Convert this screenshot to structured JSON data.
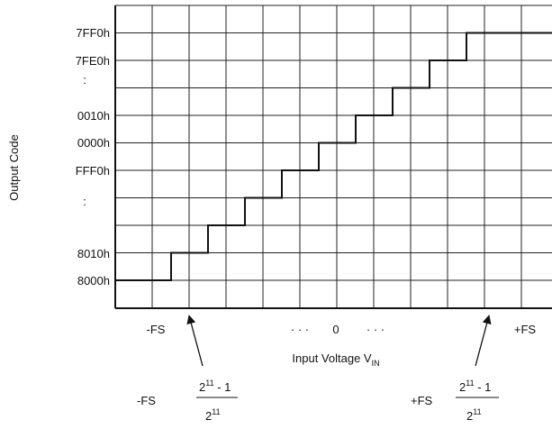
{
  "diagram": {
    "y_axis_label": "Output Code",
    "y_ticks": [
      "7FF0h",
      "7FE0h",
      ":",
      "0010h",
      "0000h",
      "FFF0h",
      ":",
      "8010h",
      "8000h"
    ],
    "x_labels": {
      "left": "-FS",
      "center_dots_left": "· · ·",
      "center": "0",
      "center_dots_right": "· · ·",
      "right": "+FS"
    },
    "x_axis_label_main": "Input Voltage V",
    "x_axis_label_sub": "IN",
    "annotation_left": {
      "prefix": "-FS",
      "numerator_base": "2",
      "numerator_exp": "11",
      "numerator_tail": " - 1",
      "denominator_base": "2",
      "denominator_exp": "11"
    },
    "annotation_right": {
      "prefix": "+FS",
      "numerator_base": "2",
      "numerator_exp": "11",
      "numerator_tail": " - 1",
      "denominator_base": "2",
      "denominator_exp": "11"
    }
  }
}
